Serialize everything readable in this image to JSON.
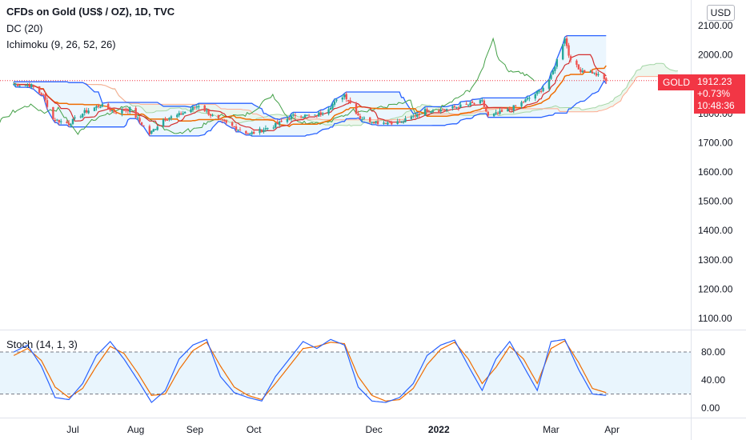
{
  "header": {
    "title": "CFDs on Gold (US$ / OZ), 1D, TVC",
    "indicator_dc": "DC (20)",
    "indicator_ichimoku": "Ichimoku (9, 26, 52, 26)",
    "currency": "USD"
  },
  "price_tag": {
    "symbol": "GOLD",
    "price": "1912.23",
    "change": "+0.73%",
    "countdown": "10:48:36"
  },
  "stoch": {
    "label": "Stoch (14, 1, 3)"
  },
  "colors": {
    "candle_up": "#26a69a",
    "candle_down": "#ef5350",
    "donchian": "#2962ff",
    "donchian_fill": "#e3f2fd",
    "kijun": "#ef6c00",
    "tenkan": "#d32f2f",
    "chikou": "#43a047",
    "span_a": "#a5d6a7",
    "span_b": "#ffab91",
    "stoch_k": "#2962ff",
    "stoch_d": "#ef6c00",
    "accent_red": "#f23645"
  },
  "chart_data": [
    {
      "type": "candlestick",
      "title": "CFDs on Gold (US$ / OZ), 1D, TVC",
      "y_ticks": [
        1100,
        1200,
        1300,
        1400,
        1500,
        1600,
        1700,
        1800,
        1900,
        2000,
        2100
      ],
      "y_tick_labels": [
        "1100.00",
        "1200.00",
        "1300.00",
        "1400.00",
        "1500.00",
        "1600.00",
        "1700.00",
        "1800.00",
        "1900.00",
        "2000.00",
        "2100.00"
      ],
      "ylim": [
        1100,
        2100
      ],
      "x_ticks": [
        "Jul",
        "Aug",
        "Sep",
        "Oct",
        "Dec",
        "2022",
        "Mar",
        "Apr"
      ],
      "x_tick_dates": [
        "2021-07-01",
        "2021-08-02",
        "2021-09-01",
        "2021-10-01",
        "2021-12-01",
        "2022-01-03",
        "2022-03-01",
        "2022-04-01"
      ],
      "last_price": 1912.23,
      "close_path": {
        "dates": [
          "2021-06-01",
          "2021-06-10",
          "2021-06-16",
          "2021-06-21",
          "2021-06-29",
          "2021-07-07",
          "2021-07-15",
          "2021-07-23",
          "2021-07-30",
          "2021-08-09",
          "2021-08-16",
          "2021-08-24",
          "2021-09-03",
          "2021-09-10",
          "2021-09-17",
          "2021-09-29",
          "2021-10-12",
          "2021-10-22",
          "2021-11-01",
          "2021-11-08",
          "2021-11-16",
          "2021-11-24",
          "2021-12-03",
          "2021-12-15",
          "2021-12-27",
          "2022-01-05",
          "2022-01-14",
          "2022-01-25",
          "2022-01-28",
          "2022-02-07",
          "2022-02-15",
          "2022-02-24",
          "2022-03-01",
          "2022-03-08",
          "2022-03-10",
          "2022-03-15",
          "2022-03-22",
          "2022-03-29"
        ],
        "closes": [
          1900,
          1895,
          1860,
          1780,
          1765,
          1805,
          1828,
          1805,
          1815,
          1730,
          1780,
          1795,
          1828,
          1790,
          1765,
          1730,
          1760,
          1795,
          1790,
          1820,
          1865,
          1785,
          1770,
          1770,
          1810,
          1812,
          1825,
          1840,
          1790,
          1810,
          1840,
          1880,
          1925,
          2060,
          2000,
          1950,
          1940,
          1912
        ]
      },
      "series": [
        {
          "name": "DC (20)"
        },
        {
          "name": "Ichimoku (9, 26, 52, 26)"
        }
      ]
    },
    {
      "type": "line",
      "title": "Stoch (14, 1, 3)",
      "y_ticks": [
        0,
        40,
        80
      ],
      "y_tick_labels": [
        "0.00",
        "40.00",
        "80.00"
      ],
      "ylim": [
        0,
        100
      ],
      "levels": [
        20,
        80
      ],
      "k_path": {
        "dates": [
          "2021-06-01",
          "2021-06-08",
          "2021-06-15",
          "2021-06-22",
          "2021-06-29",
          "2021-07-06",
          "2021-07-13",
          "2021-07-20",
          "2021-07-27",
          "2021-08-03",
          "2021-08-10",
          "2021-08-17",
          "2021-08-24",
          "2021-08-31",
          "2021-09-07",
          "2021-09-14",
          "2021-09-21",
          "2021-09-28",
          "2021-10-05",
          "2021-10-12",
          "2021-10-19",
          "2021-10-26",
          "2021-11-02",
          "2021-11-09",
          "2021-11-16",
          "2021-11-23",
          "2021-11-30",
          "2021-12-07",
          "2021-12-14",
          "2021-12-21",
          "2021-12-28",
          "2022-01-04",
          "2022-01-11",
          "2022-01-18",
          "2022-01-25",
          "2022-02-01",
          "2022-02-08",
          "2022-02-15",
          "2022-02-22",
          "2022-03-01",
          "2022-03-08",
          "2022-03-15",
          "2022-03-22",
          "2022-03-29"
        ],
        "values": [
          80,
          90,
          60,
          15,
          12,
          35,
          75,
          95,
          70,
          40,
          8,
          25,
          70,
          90,
          98,
          45,
          22,
          15,
          10,
          45,
          70,
          95,
          85,
          98,
          90,
          30,
          10,
          8,
          15,
          35,
          75,
          90,
          97,
          60,
          25,
          70,
          95,
          60,
          25,
          95,
          98,
          55,
          20,
          18
        ]
      },
      "d_path": {
        "dates": [
          "2021-06-01",
          "2021-06-08",
          "2021-06-15",
          "2021-06-22",
          "2021-06-29",
          "2021-07-06",
          "2021-07-13",
          "2021-07-20",
          "2021-07-27",
          "2021-08-03",
          "2021-08-10",
          "2021-08-17",
          "2021-08-24",
          "2021-08-31",
          "2021-09-07",
          "2021-09-14",
          "2021-09-21",
          "2021-09-28",
          "2021-10-05",
          "2021-10-12",
          "2021-10-19",
          "2021-10-26",
          "2021-11-02",
          "2021-11-09",
          "2021-11-16",
          "2021-11-23",
          "2021-11-30",
          "2021-12-07",
          "2021-12-14",
          "2021-12-21",
          "2021-12-28",
          "2022-01-04",
          "2022-01-11",
          "2022-01-18",
          "2022-01-25",
          "2022-02-01",
          "2022-02-08",
          "2022-02-15",
          "2022-02-22",
          "2022-03-01",
          "2022-03-08",
          "2022-03-15",
          "2022-03-22",
          "2022-03-29"
        ],
        "values": [
          75,
          85,
          68,
          30,
          15,
          28,
          60,
          88,
          78,
          50,
          18,
          20,
          55,
          82,
          94,
          60,
          30,
          18,
          12,
          35,
          60,
          85,
          88,
          94,
          92,
          45,
          18,
          10,
          12,
          28,
          62,
          84,
          94,
          70,
          35,
          58,
          88,
          70,
          35,
          85,
          96,
          65,
          28,
          22
        ]
      }
    }
  ]
}
